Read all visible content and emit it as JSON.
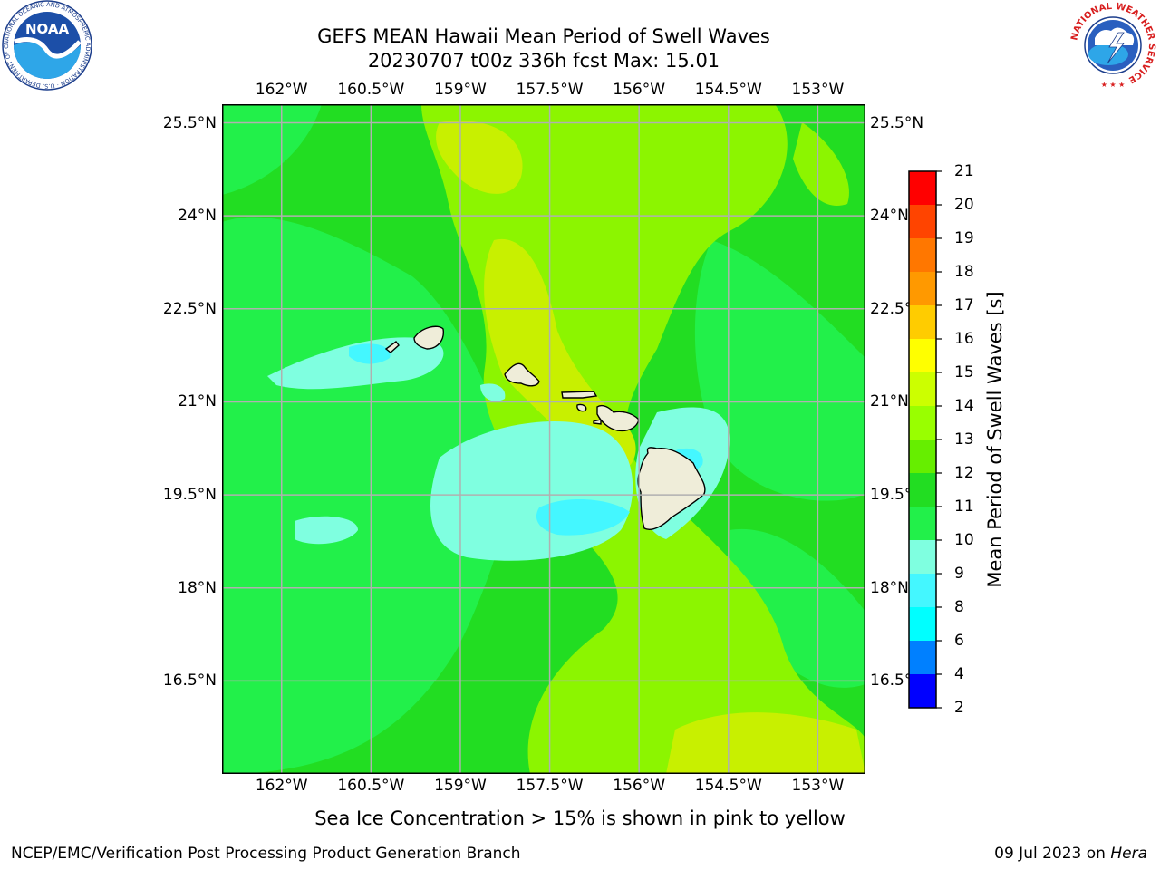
{
  "header": {
    "title_line1": "GEFS MEAN Hawaii Mean Period of Swell Waves",
    "title_line2": "20230707 t00z 336h fcst   Max: 15.01"
  },
  "map": {
    "lon_labels": [
      "162°W",
      "160.5°W",
      "159°W",
      "157.5°W",
      "156°W",
      "154.5°W",
      "153°W"
    ],
    "lat_labels": [
      "25.5°N",
      "24°N",
      "22.5°N",
      "21°N",
      "19.5°N",
      "18°N",
      "16.5°N"
    ],
    "lon_range": [
      -163,
      -152.2
    ],
    "lat_range": [
      15,
      25.8
    ],
    "background_color": "#22dd22",
    "features": [
      {
        "name": "light-green",
        "color": "#8cf500"
      },
      {
        "name": "yellow-green",
        "color": "#c8f000"
      },
      {
        "name": "mid-green",
        "color": "#22f04a"
      },
      {
        "name": "aquamarine",
        "color": "#7fffe0"
      },
      {
        "name": "light-cyan",
        "color": "#44f7ff"
      },
      {
        "name": "land",
        "color": "#efedd9"
      }
    ]
  },
  "colorbar": {
    "label": "Mean Period of Swell Waves [s]",
    "ticks": [
      "2",
      "4",
      "6",
      "8",
      "9",
      "10",
      "11",
      "12",
      "13",
      "14",
      "15",
      "16",
      "17",
      "18",
      "19",
      "20",
      "21"
    ],
    "colors": [
      "#0000ff",
      "#0080ff",
      "#00ffff",
      "#44f7ff",
      "#7fffe0",
      "#22f04a",
      "#22dd22",
      "#66ee00",
      "#99ff00",
      "#ccff00",
      "#ffff00",
      "#ffcc00",
      "#ff9900",
      "#ff7700",
      "#ff4400",
      "#ff0000"
    ]
  },
  "note": "Sea Ice Concentration > 15% is shown in pink to yellow",
  "footer": {
    "left": "NCEP/EMC/Verification Post Processing Product Generation Branch",
    "date": "09 Jul 2023 on ",
    "machine": "Hera"
  },
  "logos": {
    "noaa_text": "NOAA",
    "noaa_ring": "NATIONAL OCEANIC AND ATMOSPHERIC ADMINISTRATION · U.S. DEPARTMENT OF COMMERCE",
    "nws_ring": "NATIONAL WEATHER SERVICE"
  }
}
